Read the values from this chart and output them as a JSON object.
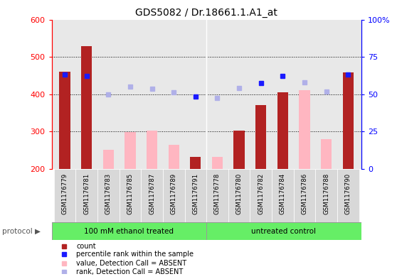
{
  "title": "GDS5082 / Dr.18661.1.A1_at",
  "samples": [
    "GSM1176779",
    "GSM1176781",
    "GSM1176783",
    "GSM1176785",
    "GSM1176787",
    "GSM1176789",
    "GSM1176791",
    "GSM1176778",
    "GSM1176780",
    "GSM1176782",
    "GSM1176784",
    "GSM1176786",
    "GSM1176788",
    "GSM1176790"
  ],
  "count": [
    460,
    528,
    null,
    null,
    null,
    null,
    232,
    null,
    302,
    370,
    405,
    null,
    null,
    458
  ],
  "count_absent": [
    null,
    null,
    252,
    298,
    302,
    265,
    null,
    232,
    null,
    null,
    null,
    410,
    280,
    null
  ],
  "rank": [
    452,
    449,
    null,
    null,
    null,
    null,
    394,
    null,
    null,
    429,
    448,
    null,
    null,
    453
  ],
  "rank_absent": [
    null,
    null,
    400,
    420,
    415,
    405,
    null,
    390,
    416,
    null,
    null,
    432,
    407,
    null
  ],
  "ylim_left": [
    200,
    600
  ],
  "ylim_right": [
    0,
    100
  ],
  "yticks_left": [
    200,
    300,
    400,
    500,
    600
  ],
  "yticks_right": [
    0,
    25,
    50,
    75,
    100
  ],
  "yticklabels_right": [
    "0",
    "25",
    "50",
    "75",
    "100%"
  ],
  "group1_label": "100 mM ethanol treated",
  "group2_label": "untreated control",
  "group1_count": 7,
  "group2_count": 7,
  "color_count": "#b22222",
  "color_rank": "#1a1aff",
  "color_count_absent": "#ffb6c1",
  "color_rank_absent": "#b0b0e8",
  "group_bg": "#66ee66",
  "bar_width": 0.5,
  "legend_items": [
    {
      "label": "count",
      "color": "#b22222"
    },
    {
      "label": "percentile rank within the sample",
      "color": "#1a1aff"
    },
    {
      "label": "value, Detection Call = ABSENT",
      "color": "#ffb6c1"
    },
    {
      "label": "rank, Detection Call = ABSENT",
      "color": "#b0b0e8"
    }
  ]
}
